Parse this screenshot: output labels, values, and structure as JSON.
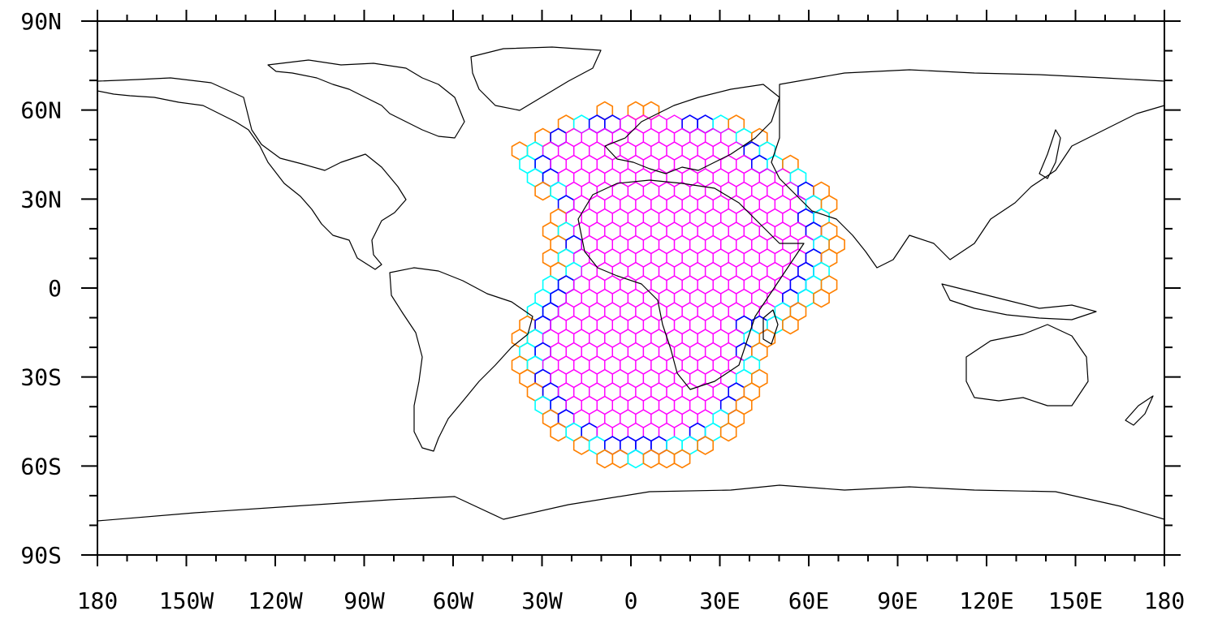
{
  "map": {
    "projection": "cylindrical-equidistant",
    "lon_range": [
      -180,
      180
    ],
    "lat_range": [
      -90,
      90
    ],
    "x_tick_labels": [
      "180",
      "150W",
      "120W",
      "90W",
      "60W",
      "30W",
      "0",
      "30E",
      "60E",
      "90E",
      "120E",
      "150E",
      "180"
    ],
    "y_tick_labels": [
      "90N",
      "60N",
      "30N",
      "0",
      "30S",
      "60S",
      "90S"
    ],
    "coastline_color": "#000000",
    "mesh": {
      "cell_shape": "hexagon",
      "interior_color": "#ff00ff",
      "boundary_inner_color": "#0000ff",
      "boundary_middle_color": "#00ffff",
      "boundary_outer_color": "#ff8000"
    }
  }
}
